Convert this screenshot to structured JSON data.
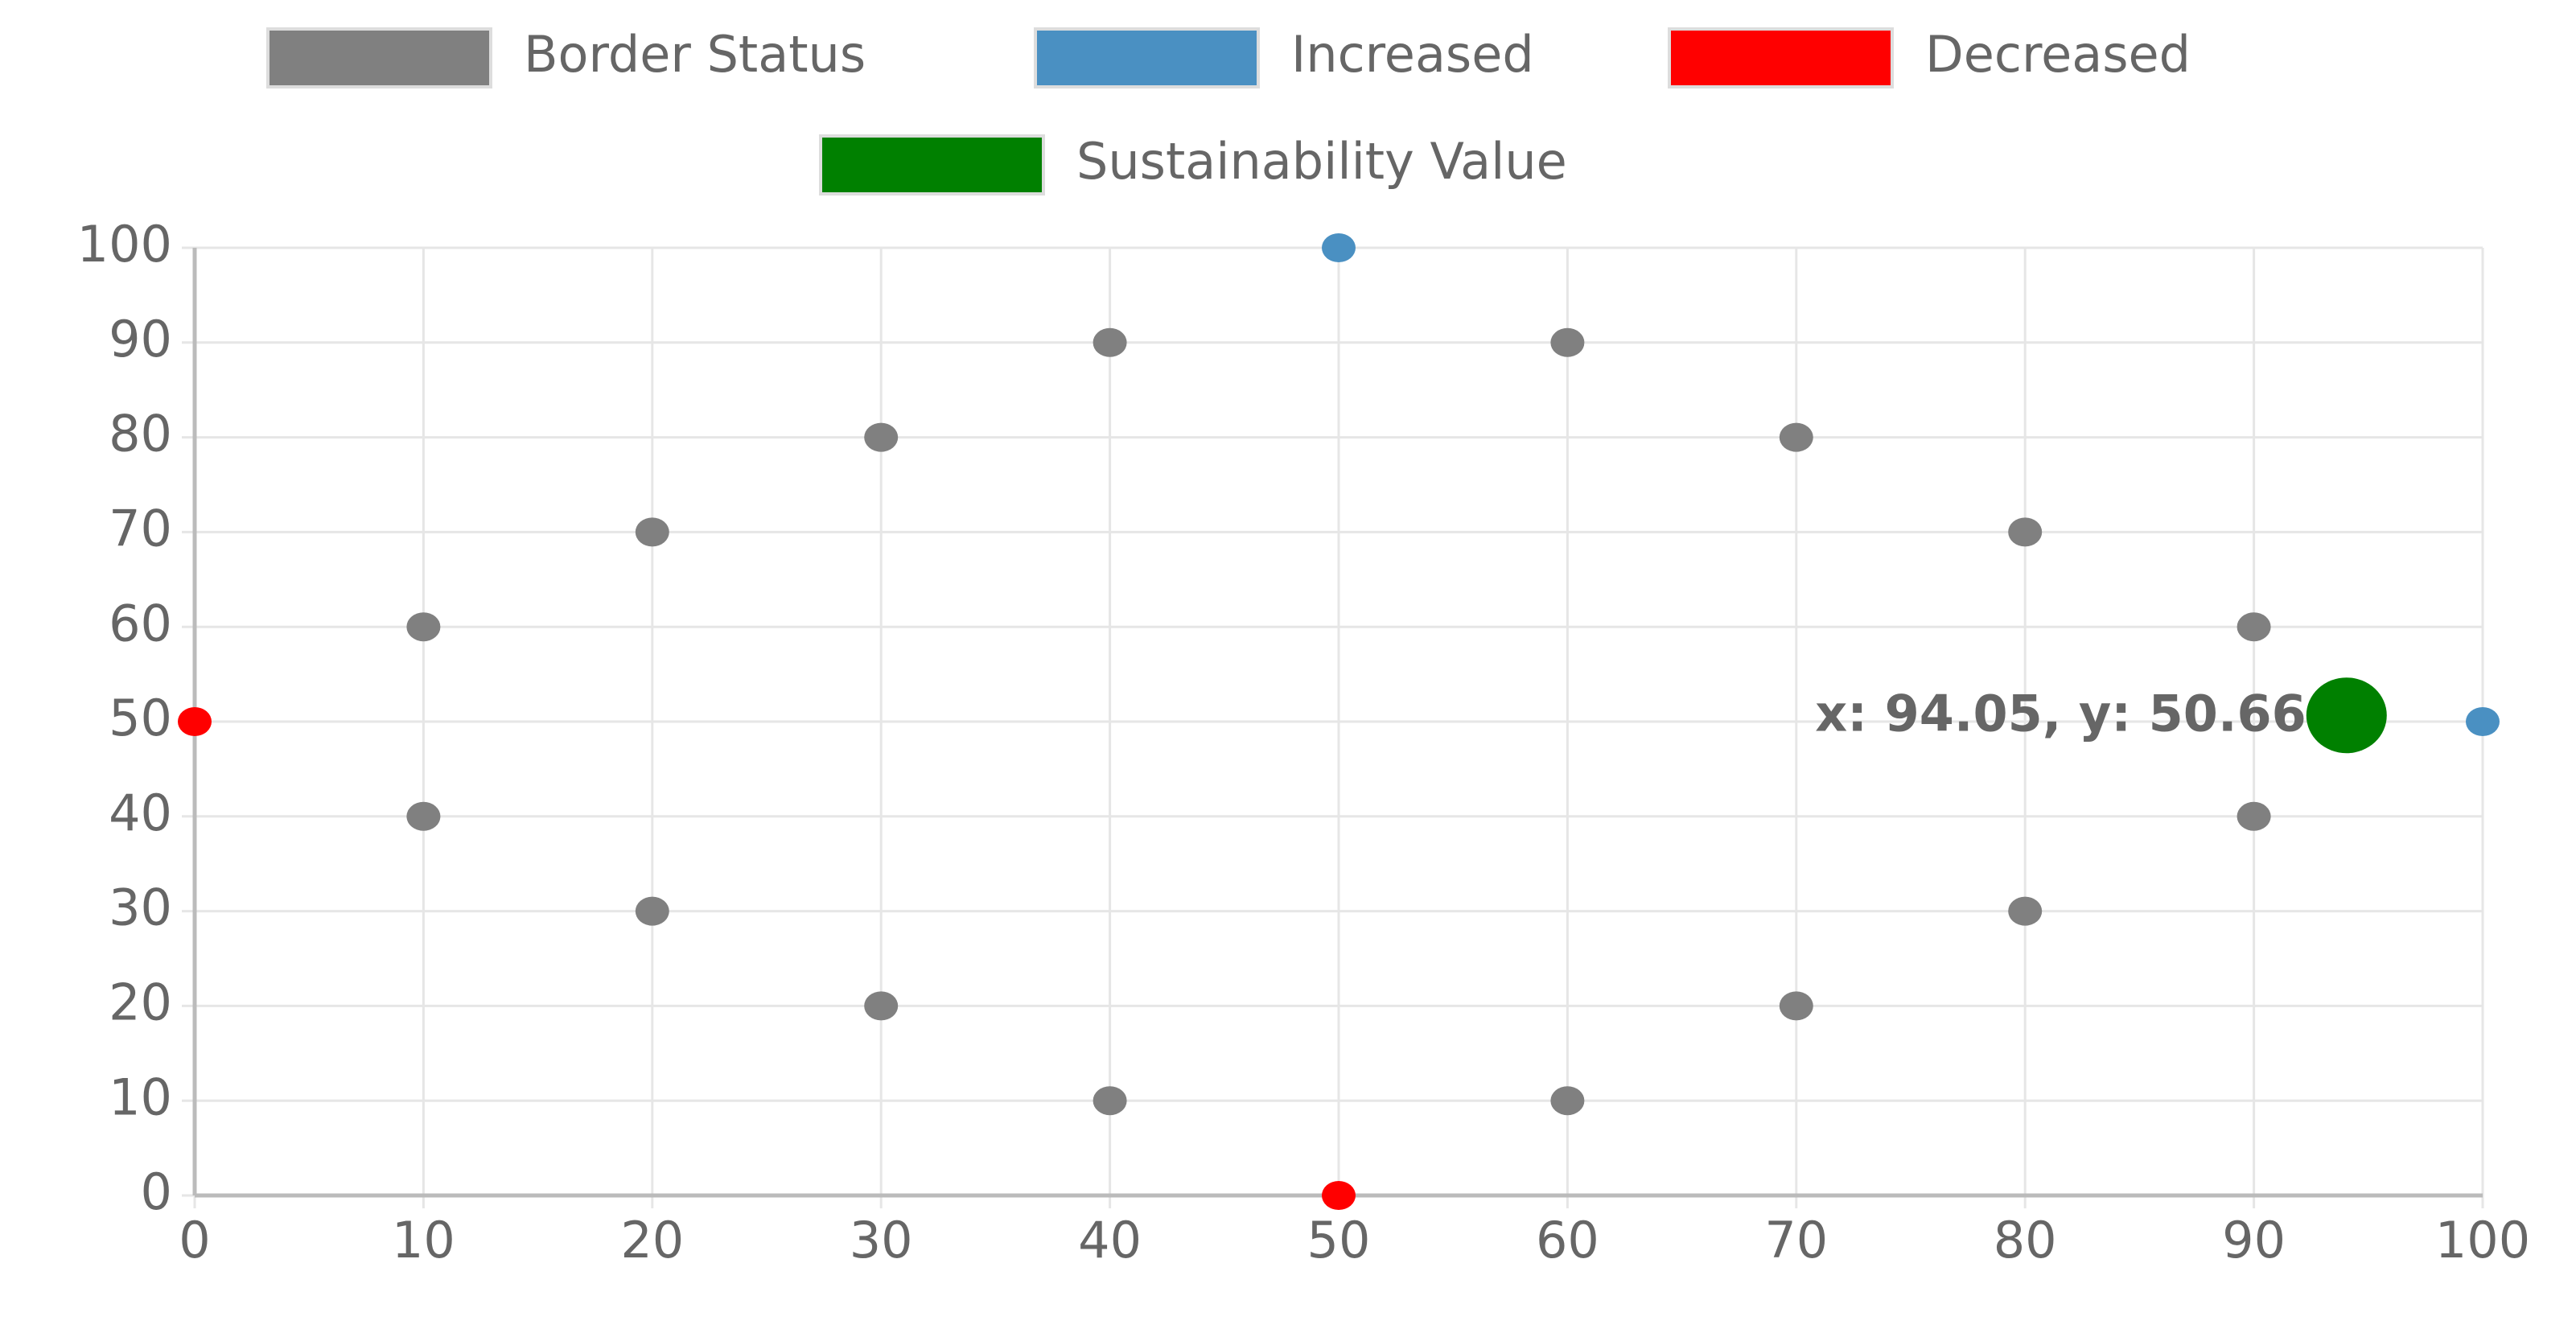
{
  "chart_data": {
    "type": "scatter",
    "series": [
      {
        "name": "Border Status",
        "color": "#808080",
        "x": [
          10,
          20,
          30,
          40,
          60,
          70,
          80,
          90,
          90,
          80,
          70,
          60,
          40,
          30,
          20,
          10
        ],
        "y": [
          60,
          70,
          80,
          90,
          90,
          80,
          70,
          60,
          40,
          30,
          20,
          10,
          10,
          20,
          30,
          40
        ]
      },
      {
        "name": "Increased",
        "color": "#4a90c2",
        "x": [
          50,
          100
        ],
        "y": [
          100,
          50
        ]
      },
      {
        "name": "Decreased",
        "color": "#ff0000",
        "x": [
          0,
          50
        ],
        "y": [
          50,
          0
        ]
      },
      {
        "name": "Sustainability Value",
        "color": "#008000",
        "x": [
          94.05
        ],
        "y": [
          50.66
        ]
      }
    ],
    "annotation": "x: 94.05, y: 50.66",
    "xlim": [
      0,
      100
    ],
    "xticks": [
      0,
      10,
      20,
      30,
      40,
      50,
      60,
      70,
      80,
      90,
      100
    ],
    "ylim": [
      0,
      100
    ],
    "yticks": [
      0,
      10,
      20,
      30,
      40,
      50,
      60,
      70,
      80,
      90,
      100
    ],
    "grid": true,
    "legend": "top"
  }
}
